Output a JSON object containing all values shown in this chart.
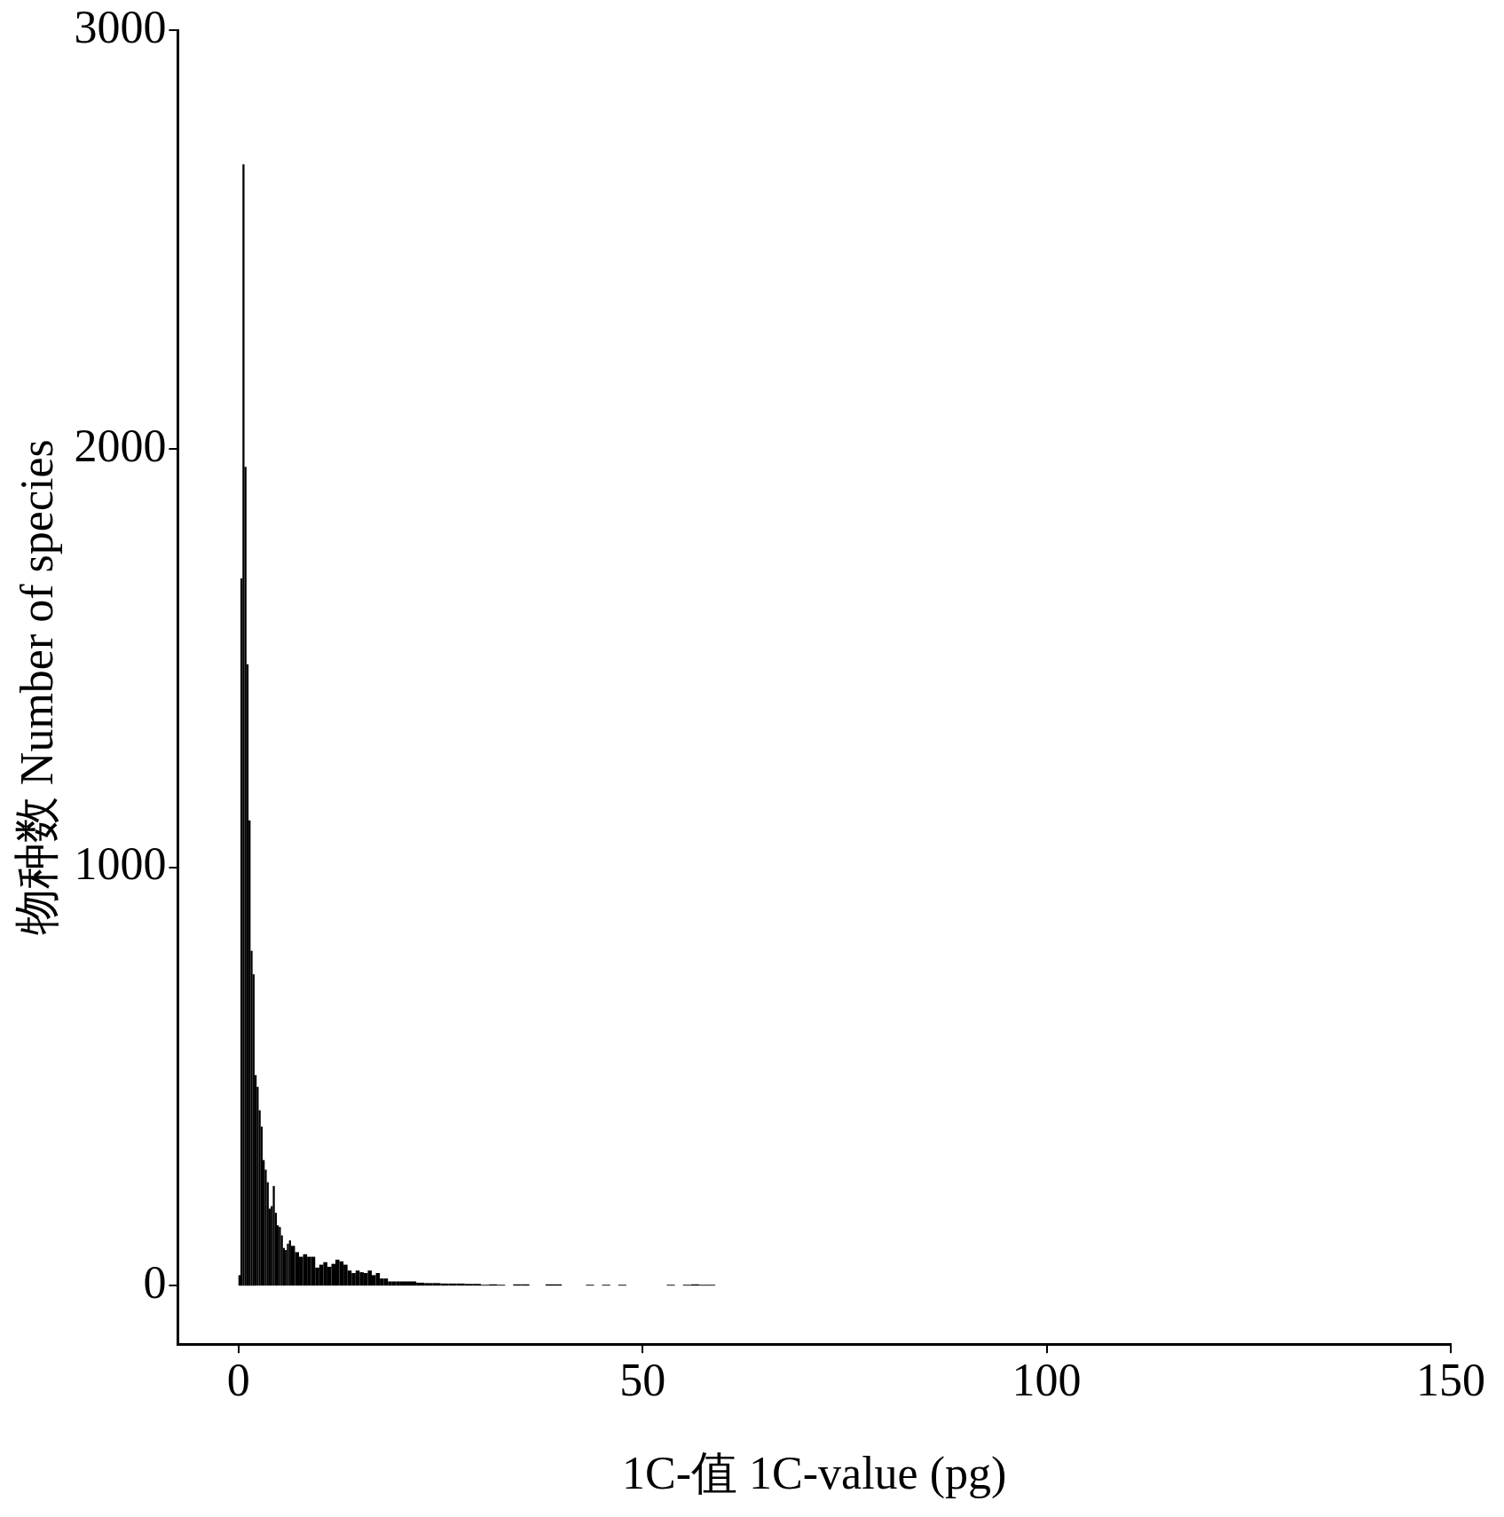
{
  "chart_data": {
    "type": "histogram",
    "xlabel": "1C-值 1C-value (pg)",
    "ylabel": "物种数 Number of species",
    "color": "#000000",
    "bins": [
      0,
      0.25,
      0.5,
      0.75,
      1,
      1.25,
      1.5,
      1.75,
      2,
      2.25,
      2.5,
      2.75,
      3,
      3.25,
      3.5,
      3.75,
      4,
      4.25,
      4.5,
      4.75,
      5,
      5.25,
      5.5,
      5.75,
      6,
      6.25,
      6.5,
      7,
      7.5,
      8,
      8.5,
      9,
      9.5,
      10,
      10.5,
      11,
      11.5,
      12,
      12.5,
      13,
      13.5,
      14,
      14.5,
      15,
      15.5,
      16,
      16.5,
      17,
      17.5,
      18,
      18.5,
      19,
      19.5,
      20,
      21,
      22,
      23,
      24,
      25,
      26,
      27,
      28,
      29,
      30,
      31,
      32,
      33,
      34,
      35,
      36,
      38,
      39,
      40,
      43,
      44,
      45,
      46,
      47,
      48,
      53,
      54,
      55,
      56,
      57,
      58,
      59
    ],
    "values": [
      25,
      1690,
      2680,
      1957,
      1485,
      1112,
      800,
      744,
      503,
      475,
      419,
      380,
      300,
      277,
      247,
      184,
      190,
      238,
      174,
      144,
      140,
      120,
      90,
      85,
      100,
      108,
      95,
      80,
      69,
      75,
      69,
      69,
      43,
      50,
      56,
      45,
      52,
      62,
      58,
      50,
      36,
      30,
      36,
      32,
      30,
      36,
      25,
      30,
      17,
      17,
      10,
      10,
      10,
      10,
      10,
      7,
      6,
      6,
      5,
      5,
      5,
      4,
      4,
      2,
      3,
      2,
      0,
      3,
      3,
      0,
      3,
      3,
      0,
      2,
      0,
      2,
      0,
      2,
      0,
      2,
      0,
      2,
      3,
      2,
      2
    ],
    "xlim": [
      -7.5,
      150
    ],
    "xticks": [
      0,
      50,
      100,
      150
    ],
    "ylim": [
      -140,
      3000
    ],
    "yticks": [
      0,
      1000,
      2000,
      3000
    ]
  }
}
